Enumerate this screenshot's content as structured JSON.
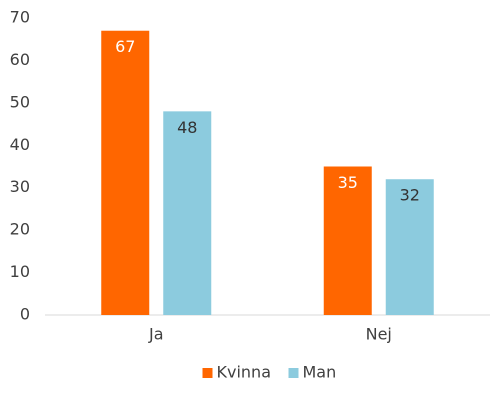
{
  "chart_data": {
    "type": "bar",
    "categories": [
      "Ja",
      "Nej"
    ],
    "series": [
      {
        "name": "Kvinna",
        "color": "#ff6600",
        "label_color": "#ffffff",
        "values": [
          67,
          35
        ]
      },
      {
        "name": "Man",
        "color": "#8ccbde",
        "label_color": "#333333",
        "values": [
          48,
          32
        ]
      }
    ],
    "ylim": [
      0,
      70
    ],
    "yticks": [
      0,
      10,
      20,
      30,
      40,
      50,
      60,
      70
    ],
    "grid": false,
    "legend": "bottom"
  }
}
